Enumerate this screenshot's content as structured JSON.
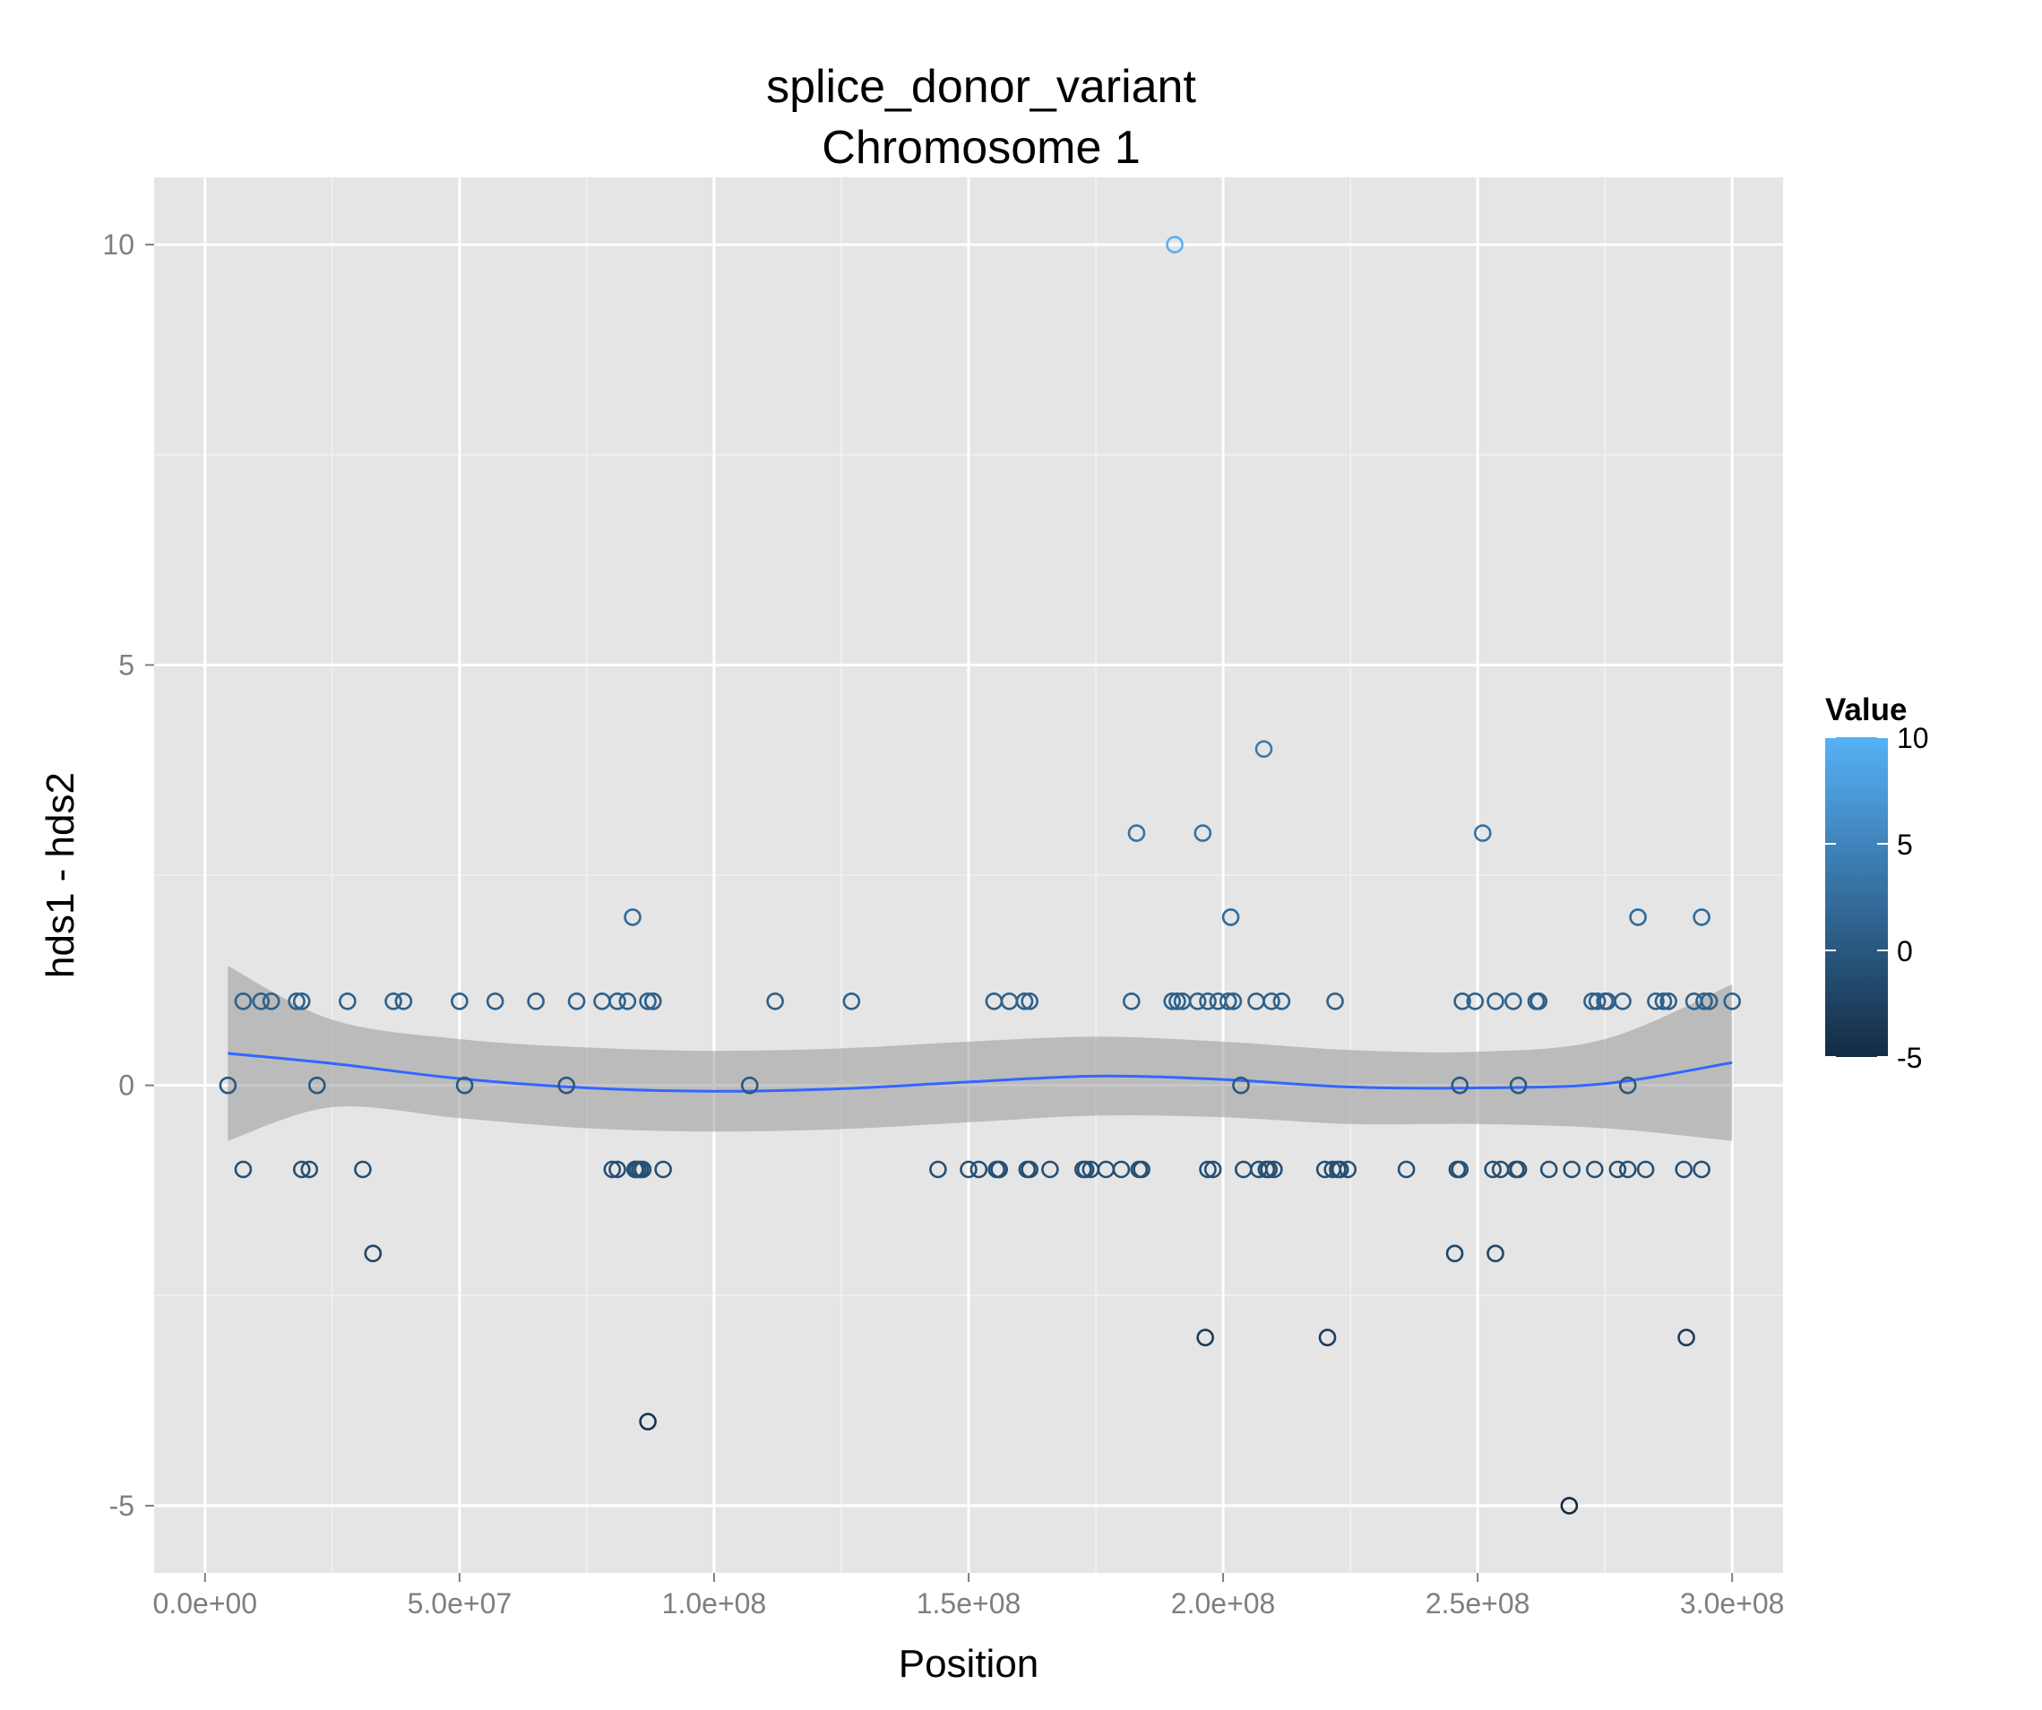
{
  "chart_data": {
    "type": "scatter",
    "title": "splice_donor_variant",
    "subtitle": "Chromosome 1",
    "xlabel": "Position",
    "ylabel": "hds1 - hds2",
    "xlim": [
      -10000000,
      310000000
    ],
    "ylim": [
      -5.8,
      10.8
    ],
    "x_ticks": [
      0,
      50000000,
      100000000,
      150000000,
      200000000,
      250000000,
      300000000
    ],
    "x_tick_labels": [
      "0.0e+00",
      "5.0e+07",
      "1.0e+08",
      "1.5e+08",
      "2.0e+08",
      "2.5e+08",
      "3.0e+08"
    ],
    "y_ticks": [
      -5,
      0,
      5,
      10
    ],
    "y_tick_labels": [
      "-5",
      "0",
      "5",
      "10"
    ],
    "grid": true,
    "legend": {
      "title": "Value",
      "position": "right",
      "range": [
        -5,
        10
      ],
      "breaks": [
        10,
        5,
        0,
        -5
      ],
      "break_labels": [
        "10",
        "5",
        "0",
        "-5"
      ],
      "color_low": "#132b43",
      "color_high": "#56b1f7"
    },
    "colors": {
      "panel_background": "#e5e5e5",
      "grid_major": "#ffffff",
      "grid_minor": "#f2f2f2",
      "smooth_line": "#3366ff",
      "ribbon": "#999999"
    },
    "points": {
      "x": [
        4500000,
        7500000,
        7500000,
        11000000,
        13000000,
        18000000,
        19000000,
        19000000,
        20500000,
        22000000,
        28000000,
        31000000,
        33000000,
        37000000,
        39000000,
        50000000,
        51000000,
        57000000,
        65000000,
        71000000,
        73000000,
        78000000,
        80000000,
        81000000,
        81000000,
        83000000,
        84000000,
        84500000,
        84500000,
        85000000,
        85500000,
        86000000,
        87000000,
        87000000,
        88000000,
        88000000,
        90000000,
        107000000,
        112000000,
        127000000,
        144000000,
        150000000,
        152000000,
        155000000,
        155500000,
        156000000,
        156000000,
        158000000,
        161000000,
        161500000,
        162000000,
        162000000,
        166000000,
        172500000,
        173000000,
        174000000,
        177000000,
        180000000,
        182000000,
        183000000,
        183500000,
        184000000,
        190000000,
        190500000,
        191000000,
        192000000,
        195000000,
        196000000,
        196500000,
        197000000,
        197000000,
        198000000,
        199000000,
        201000000,
        201500000,
        202000000,
        203500000,
        204000000,
        206500000,
        207000000,
        208000000,
        208500000,
        209000000,
        209500000,
        210000000,
        211500000,
        220000000,
        220500000,
        221500000,
        222000000,
        222500000,
        223000000,
        224500000,
        236000000,
        245500000,
        246000000,
        246500000,
        246500000,
        247000000,
        249500000,
        251000000,
        253000000,
        253500000,
        253500000,
        254500000,
        257000000,
        257500000,
        258000000,
        258000000,
        261500000,
        262000000,
        264000000,
        268000000,
        268500000,
        272500000,
        273000000,
        273500000,
        275000000,
        275500000,
        277500000,
        278500000,
        279500000,
        279500000,
        281500000,
        283000000,
        285000000,
        286500000,
        287500000,
        290500000,
        291000000,
        292500000,
        294000000,
        294000000,
        294500000,
        295500000,
        300000000
      ],
      "y": [
        0,
        1,
        -1,
        1,
        1,
        1,
        1,
        -1,
        -1,
        0,
        1,
        -1,
        -2,
        1,
        1,
        1,
        0,
        1,
        1,
        0,
        1,
        1,
        -1,
        -1,
        1,
        1,
        2,
        -1,
        -1,
        -1,
        -1,
        -1,
        1,
        -4,
        1,
        1,
        -1,
        0,
        1,
        1,
        -1,
        -1,
        -1,
        1,
        -1,
        -1,
        -1,
        1,
        1,
        -1,
        1,
        -1,
        -1,
        -1,
        -1,
        -1,
        -1,
        -1,
        1,
        3,
        -1,
        -1,
        1,
        10,
        1,
        1,
        1,
        3,
        -3,
        1,
        -1,
        -1,
        1,
        1,
        2,
        1,
        0,
        -1,
        1,
        -1,
        4,
        -1,
        -1,
        1,
        -1,
        1,
        -1,
        -3,
        -1,
        1,
        -1,
        -1,
        -1,
        -1,
        -2,
        -1,
        0,
        -1,
        1,
        1,
        3,
        -1,
        -2,
        1,
        -1,
        1,
        -1,
        0,
        -1,
        1,
        1,
        -1,
        -5,
        -1,
        1,
        -1,
        1,
        1,
        1,
        -1,
        1,
        -1,
        0,
        2,
        -1,
        1,
        1,
        1,
        -1,
        -3,
        1,
        2,
        -1,
        1,
        1,
        1
      ]
    },
    "smooth": {
      "x": [
        4500000,
        25000000,
        50000000,
        75000000,
        100000000,
        125000000,
        150000000,
        175000000,
        200000000,
        225000000,
        250000000,
        275000000,
        300000000
      ],
      "y": [
        0.38,
        0.26,
        0.08,
        -0.03,
        -0.07,
        -0.04,
        0.04,
        0.11,
        0.07,
        -0.02,
        -0.03,
        0.02,
        0.27
      ],
      "upper": [
        1.42,
        0.78,
        0.55,
        0.45,
        0.41,
        0.44,
        0.52,
        0.58,
        0.52,
        0.42,
        0.4,
        0.55,
        1.2
      ],
      "lower": [
        -0.66,
        -0.26,
        -0.39,
        -0.51,
        -0.55,
        -0.52,
        -0.44,
        -0.36,
        -0.38,
        -0.46,
        -0.46,
        -0.51,
        -0.66
      ]
    }
  }
}
